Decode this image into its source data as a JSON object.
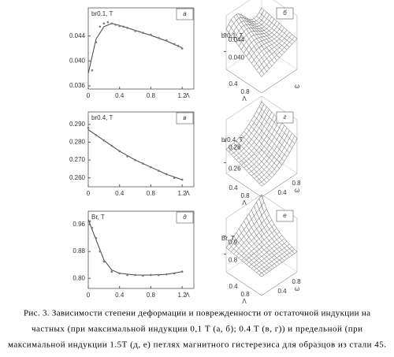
{
  "chart_data": [
    {
      "type": "scatter",
      "panel": "а",
      "ylabel": "br0.1, T",
      "xlabel": "Λ",
      "xlim": [
        0,
        1.35
      ],
      "ylim": [
        0.0355,
        0.0485
      ],
      "xticks": [
        0,
        0.4,
        0.8,
        1.2
      ],
      "yticks": [
        {
          "value": 0.036,
          "label": "0.036"
        },
        {
          "value": 0.04,
          "label": "0.040"
        },
        {
          "value": 0.044,
          "label": "0.044"
        }
      ],
      "color": "#777777",
      "x": [
        0.05,
        0.1,
        0.15,
        0.2,
        0.25,
        0.3,
        0.35,
        0.4,
        0.45,
        0.5,
        0.6,
        0.7,
        0.8,
        0.9,
        1.0,
        1.1,
        1.15,
        1.2
      ],
      "values": [
        0.0385,
        0.043,
        0.0455,
        0.046,
        0.0462,
        0.046,
        0.0458,
        0.0456,
        0.0455,
        0.0453,
        0.0448,
        0.0445,
        0.0442,
        0.0437,
        0.0433,
        0.0427,
        0.0424,
        0.042
      ],
      "curve_x": [
        0,
        0.1,
        0.2,
        0.3,
        0.4,
        0.6,
        0.8,
        1.0,
        1.2
      ],
      "curve_values": [
        0.038,
        0.0435,
        0.0455,
        0.046,
        0.0457,
        0.0449,
        0.0441,
        0.0432,
        0.0421
      ]
    },
    {
      "type": "surface",
      "panel": "б",
      "zlabel": "br0.1, T",
      "zlim": [
        0.036,
        0.048
      ],
      "zticks": [
        {
          "value": 0.04,
          "label": "0.040"
        },
        {
          "value": 0.044,
          "label": "0.044"
        }
      ],
      "xlim": [
        0,
        1.2
      ],
      "xticks": [
        0.4,
        0.8
      ],
      "xlabel": "Λ",
      "wlim": [
        0,
        1
      ],
      "wticks": [],
      "wlabel": "ω"
    },
    {
      "type": "scatter",
      "panel": "в",
      "ylabel": "br0.4, T",
      "xlabel": "Λ",
      "xlim": [
        0,
        1.35
      ],
      "ylim": [
        0.255,
        0.297
      ],
      "xticks": [
        0,
        0.4,
        0.8,
        1.2
      ],
      "yticks": [
        {
          "value": 0.26,
          "label": "0.260"
        },
        {
          "value": 0.27,
          "label": "0.270"
        },
        {
          "value": 0.28,
          "label": "0.280"
        },
        {
          "value": 0.29,
          "label": "0.290"
        }
      ],
      "color": "#777777",
      "x": [
        0,
        0.1,
        0.2,
        0.3,
        0.4,
        0.5,
        0.6,
        0.7,
        0.8,
        0.9,
        1.0,
        1.1,
        1.2
      ],
      "values": [
        0.288,
        0.284,
        0.281,
        0.278,
        0.275,
        0.272,
        0.27,
        0.268,
        0.266,
        0.264,
        0.262,
        0.26,
        0.259
      ],
      "curve_x": [
        0,
        0.2,
        0.4,
        0.6,
        0.8,
        1.0,
        1.2
      ],
      "curve_values": [
        0.287,
        0.281,
        0.275,
        0.27,
        0.266,
        0.262,
        0.259
      ]
    },
    {
      "type": "surface",
      "panel": "г",
      "zlabel": "br0.4, T",
      "zlim": [
        0.25,
        0.3
      ],
      "zticks": [
        0.26,
        0.28
      ],
      "xlim": [
        0,
        1.2
      ],
      "xticks": [
        0.4,
        0.8
      ],
      "xlabel": "Λ",
      "wlim": [
        0,
        1
      ],
      "wticks": [
        0.4,
        0.8
      ],
      "wlabel": "ω"
    },
    {
      "type": "scatter",
      "panel": "д",
      "ylabel": "Br, T",
      "xlabel": "Λ",
      "xlim": [
        0,
        1.35
      ],
      "ylim": [
        0.77,
        1.0
      ],
      "xticks": [
        0,
        0.4,
        0.8,
        1.2
      ],
      "yticks": [
        {
          "value": 0.8,
          "label": "0.80"
        },
        {
          "value": 0.88,
          "label": "0.88"
        },
        {
          "value": 0.96,
          "label": "0.96"
        }
      ],
      "color": "#777777",
      "x": [
        0.02,
        0.05,
        0.1,
        0.15,
        0.2,
        0.3,
        0.4,
        0.5,
        0.6,
        0.7,
        0.8,
        0.9,
        1.0,
        1.1,
        1.2
      ],
      "values": [
        0.97,
        0.95,
        0.92,
        0.88,
        0.85,
        0.82,
        0.815,
        0.81,
        0.81,
        0.808,
        0.81,
        0.81,
        0.812,
        0.815,
        0.82
      ],
      "curve_x": [
        0,
        0.1,
        0.2,
        0.3,
        0.4,
        0.6,
        0.8,
        1.0,
        1.2
      ],
      "curve_values": [
        0.975,
        0.915,
        0.855,
        0.825,
        0.815,
        0.81,
        0.81,
        0.812,
        0.82
      ]
    },
    {
      "type": "surface",
      "panel": "е",
      "zlabel": "Br, T",
      "zlim": [
        0.7,
        1.0
      ],
      "zticks": [
        0.8,
        0.9
      ],
      "xlim": [
        0,
        1.2
      ],
      "xticks": [
        0.4,
        0.8
      ],
      "xlabel": "Λ",
      "wlim": [
        0,
        1
      ],
      "wticks": [
        0.4,
        0.8
      ],
      "wlabel": "ω"
    }
  ],
  "caption": [
    "Рис. 3. Зависимости степени деформации и поврежденности от остаточной индукции на",
    "частных (при максимальной индукции 0,1 Т (а, б); 0.4 Т (в, г)) и предельной (при",
    "максимальной индукции 1.5Т (д, е) петлях магнитного гистерезиса для образцов из стали 45."
  ]
}
